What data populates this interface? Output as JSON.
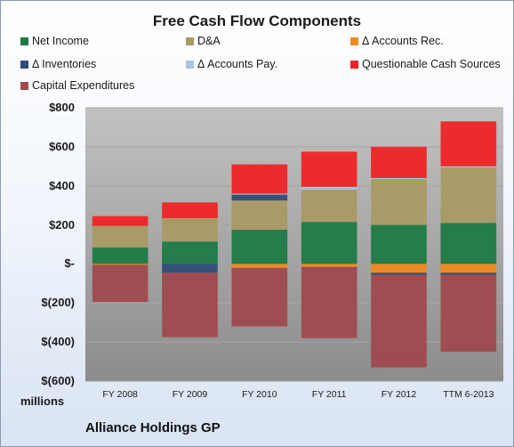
{
  "chart_data": {
    "type": "bar",
    "stacked": true,
    "title": "Free Cash Flow Components",
    "ylabel": "",
    "xlabel": "",
    "units_label": "millions",
    "footer": "Alliance Holdings GP",
    "ylim": [
      -600,
      800
    ],
    "y_ticks": [
      800,
      600,
      400,
      200,
      0,
      -200,
      -400,
      -600
    ],
    "y_tick_labels": [
      "$800",
      "$600",
      "$400",
      "$200",
      "$-",
      "$(200)",
      "$(400)",
      "$(600)"
    ],
    "categories": [
      "FY 2008",
      "FY 2009",
      "FY 2010",
      "FY 2011",
      "FY 2012",
      "TTM 6-2013"
    ],
    "grid": true,
    "legend_position": "top",
    "series": [
      {
        "name": "Net Income",
        "color": "#1e7a45",
        "values": [
          85,
          115,
          175,
          215,
          200,
          210
        ]
      },
      {
        "name": "D&A",
        "color": "#a89a64",
        "values": [
          110,
          120,
          150,
          165,
          235,
          285
        ]
      },
      {
        "name": "Δ Accounts Rec.",
        "color": "#ee8a1c",
        "values": [
          -5,
          0,
          -20,
          -15,
          -45,
          -45
        ]
      },
      {
        "name": "Δ Inventories",
        "color": "#2f4d75",
        "values": [
          0,
          -45,
          30,
          0,
          -10,
          -10
        ]
      },
      {
        "name": "Δ Accounts Pay.",
        "color": "#a9c3e2",
        "values": [
          0,
          0,
          5,
          15,
          5,
          5
        ]
      },
      {
        "name": "Questionable Cash Sources",
        "color": "#ee2424",
        "values": [
          50,
          80,
          150,
          180,
          160,
          230
        ]
      },
      {
        "name": "Capital Expenditures",
        "color": "#9e4a4e",
        "values": [
          -190,
          -330,
          -300,
          -365,
          -475,
          -395
        ]
      }
    ]
  }
}
